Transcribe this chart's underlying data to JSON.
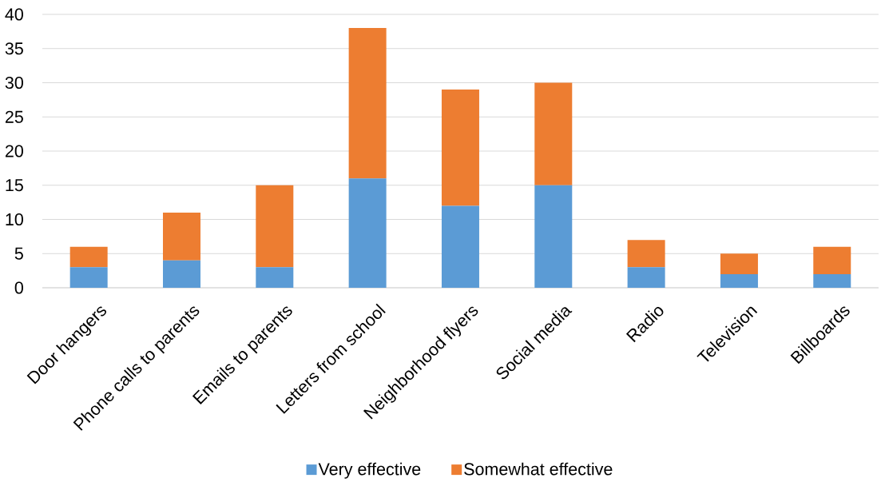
{
  "chart_data": {
    "type": "bar",
    "stacked": true,
    "categories": [
      "Door hangers",
      "Phone calls to parents",
      "Emails to parents",
      "Letters from school",
      "Neighborhood flyers",
      "Social media",
      "Radio",
      "Television",
      "Billboards"
    ],
    "series": [
      {
        "name": "Very effective",
        "color": "#5b9bd5",
        "values": [
          3,
          4,
          3,
          16,
          12,
          15,
          3,
          2,
          2
        ]
      },
      {
        "name": "Somewhat effective",
        "color": "#ed7d31",
        "values": [
          3,
          7,
          12,
          22,
          17,
          15,
          4,
          3,
          4
        ]
      }
    ],
    "ylim": [
      0,
      40
    ],
    "yticks": [
      0,
      5,
      10,
      15,
      20,
      25,
      30,
      35,
      40
    ],
    "grid": "y",
    "legend": "bottom"
  }
}
